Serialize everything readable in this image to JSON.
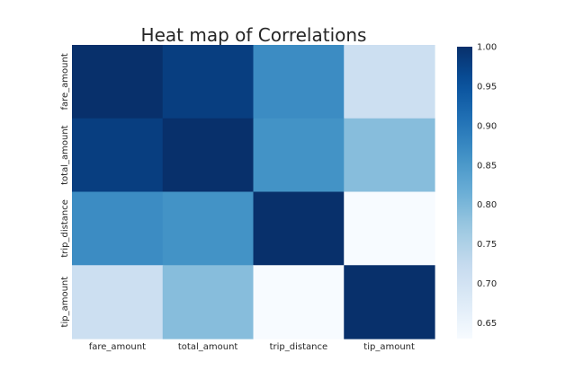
{
  "chart_data": {
    "type": "heatmap",
    "title": "Heat map of Correlations",
    "x_labels": [
      "fare_amount",
      "total_amount",
      "trip_distance",
      "tip_amount"
    ],
    "y_labels": [
      "fare_amount",
      "total_amount",
      "trip_distance",
      "tip_amount"
    ],
    "values": [
      [
        1.0,
        0.98,
        0.87,
        0.71
      ],
      [
        0.98,
        1.0,
        0.86,
        0.79
      ],
      [
        0.87,
        0.86,
        1.0,
        0.63
      ],
      [
        0.71,
        0.79,
        0.63,
        1.0
      ]
    ],
    "colormap": "Blues",
    "vmin": 0.63,
    "vmax": 1.0,
    "colorbar_ticks": [
      "1.00",
      "0.95",
      "0.90",
      "0.85",
      "0.80",
      "0.75",
      "0.70",
      "0.65"
    ],
    "colors": {
      "low": "#f7fbff",
      "high": "#08306b"
    }
  }
}
